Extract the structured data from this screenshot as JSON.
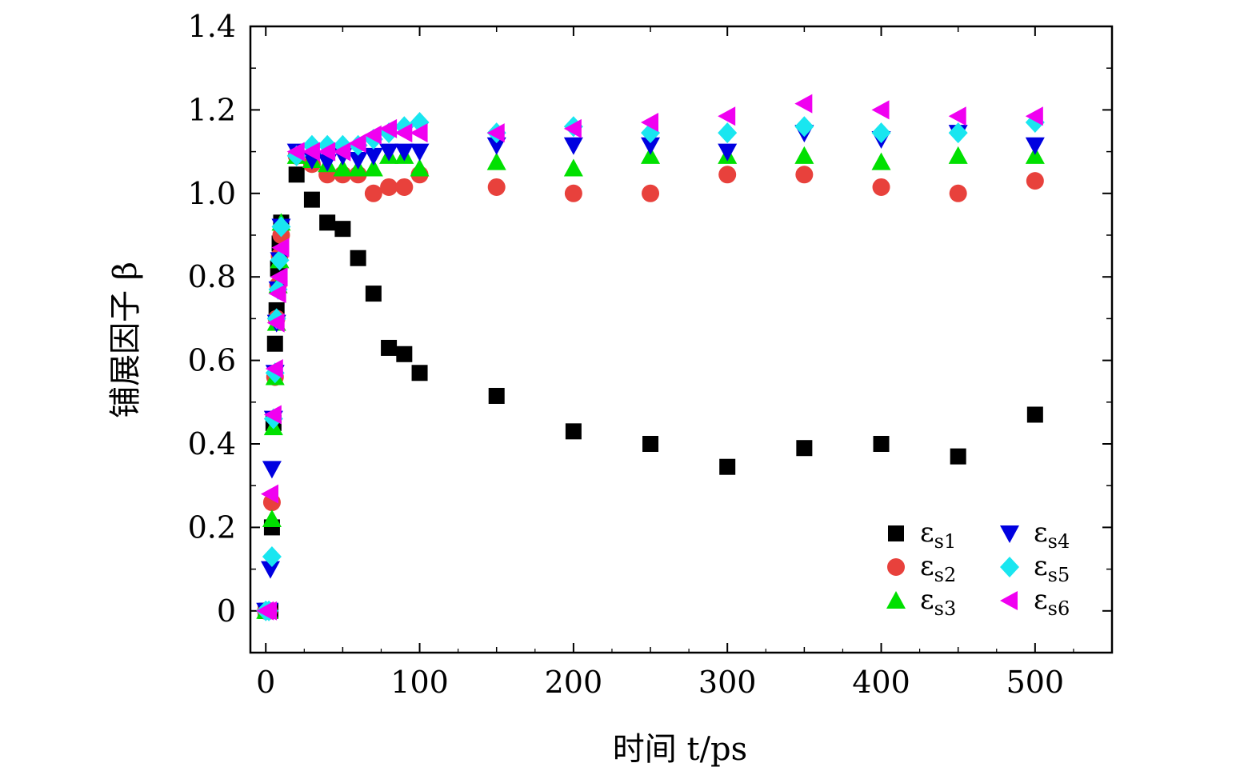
{
  "chart_data": {
    "type": "scatter",
    "xlabel": "时间 t/ps",
    "ylabel": "铺展因子 β",
    "xlim": [
      -10,
      550
    ],
    "ylim": [
      -0.1,
      1.4
    ],
    "xticks": [
      0,
      100,
      200,
      300,
      400,
      500
    ],
    "xtick_labels": [
      "0",
      "100",
      "200",
      "300",
      "400",
      "500"
    ],
    "yticks": [
      0,
      0.2,
      0.4,
      0.6,
      0.8,
      1.0,
      1.2,
      1.4
    ],
    "ytick_labels": [
      "0",
      "0.2",
      "0.4",
      "0.6",
      "0.8",
      "1.0",
      "1.2",
      "1.4"
    ],
    "grid": false,
    "legend_position": "bottom-right",
    "series": [
      {
        "name": "εs1",
        "marker": "square",
        "color": "#000000",
        "points": [
          [
            0,
            0
          ],
          [
            1,
            0
          ],
          [
            2,
            0
          ],
          [
            3,
            0
          ],
          [
            4,
            0.2
          ],
          [
            5,
            0.45
          ],
          [
            6,
            0.64
          ],
          [
            7,
            0.72
          ],
          [
            8,
            0.82
          ],
          [
            9,
            0.88
          ],
          [
            10,
            0.93
          ],
          [
            20,
            1.045
          ],
          [
            30,
            0.985
          ],
          [
            40,
            0.93
          ],
          [
            50,
            0.915
          ],
          [
            60,
            0.845
          ],
          [
            70,
            0.76
          ],
          [
            80,
            0.63
          ],
          [
            90,
            0.615
          ],
          [
            100,
            0.57
          ],
          [
            150,
            0.515
          ],
          [
            200,
            0.43
          ],
          [
            250,
            0.4
          ],
          [
            300,
            0.345
          ],
          [
            350,
            0.39
          ],
          [
            400,
            0.4
          ],
          [
            450,
            0.37
          ],
          [
            500,
            0.47
          ]
        ]
      },
      {
        "name": "εs2",
        "marker": "circle",
        "color": "#e8413c",
        "points": [
          [
            0,
            0
          ],
          [
            2,
            0
          ],
          [
            4,
            0.26
          ],
          [
            6,
            0.56
          ],
          [
            7,
            0.7
          ],
          [
            8,
            0.78
          ],
          [
            9,
            0.85
          ],
          [
            10,
            0.9
          ],
          [
            20,
            1.09
          ],
          [
            30,
            1.07
          ],
          [
            40,
            1.045
          ],
          [
            50,
            1.045
          ],
          [
            60,
            1.045
          ],
          [
            70,
            1.0
          ],
          [
            80,
            1.015
          ],
          [
            90,
            1.015
          ],
          [
            100,
            1.045
          ],
          [
            150,
            1.015
          ],
          [
            200,
            1.0
          ],
          [
            250,
            1.0
          ],
          [
            300,
            1.045
          ],
          [
            350,
            1.045
          ],
          [
            400,
            1.015
          ],
          [
            450,
            1.0
          ],
          [
            500,
            1.03
          ]
        ]
      },
      {
        "name": "εs3",
        "marker": "triangle-up",
        "color": "#00e000",
        "points": [
          [
            0,
            0
          ],
          [
            2,
            0
          ],
          [
            4,
            0.22
          ],
          [
            5,
            0.44
          ],
          [
            6,
            0.56
          ],
          [
            7,
            0.69
          ],
          [
            8,
            0.78
          ],
          [
            9,
            0.84
          ],
          [
            10,
            0.93
          ],
          [
            20,
            1.09
          ],
          [
            30,
            1.08
          ],
          [
            40,
            1.07
          ],
          [
            50,
            1.06
          ],
          [
            60,
            1.06
          ],
          [
            70,
            1.06
          ],
          [
            80,
            1.09
          ],
          [
            90,
            1.09
          ],
          [
            100,
            1.06
          ],
          [
            150,
            1.075
          ],
          [
            200,
            1.06
          ],
          [
            250,
            1.09
          ],
          [
            300,
            1.09
          ],
          [
            350,
            1.09
          ],
          [
            400,
            1.075
          ],
          [
            450,
            1.09
          ],
          [
            500,
            1.09
          ]
        ]
      },
      {
        "name": "εs4",
        "marker": "triangle-down",
        "color": "#0000e0",
        "points": [
          [
            0,
            0
          ],
          [
            2,
            0
          ],
          [
            3,
            0.1
          ],
          [
            4,
            0.34
          ],
          [
            5,
            0.46
          ],
          [
            6,
            0.57
          ],
          [
            7,
            0.69
          ],
          [
            8,
            0.77
          ],
          [
            9,
            0.84
          ],
          [
            10,
            0.92
          ],
          [
            20,
            1.1
          ],
          [
            30,
            1.08
          ],
          [
            40,
            1.075
          ],
          [
            50,
            1.09
          ],
          [
            60,
            1.08
          ],
          [
            70,
            1.09
          ],
          [
            80,
            1.1
          ],
          [
            90,
            1.1
          ],
          [
            100,
            1.1
          ],
          [
            150,
            1.115
          ],
          [
            200,
            1.115
          ],
          [
            250,
            1.115
          ],
          [
            300,
            1.1
          ],
          [
            350,
            1.145
          ],
          [
            400,
            1.13
          ],
          [
            450,
            1.145
          ],
          [
            500,
            1.115
          ]
        ]
      },
      {
        "name": "εs5",
        "marker": "diamond",
        "color": "#19e6f0",
        "points": [
          [
            0,
            0
          ],
          [
            2,
            0
          ],
          [
            4,
            0.13
          ],
          [
            5,
            0.46
          ],
          [
            6,
            0.57
          ],
          [
            7,
            0.7
          ],
          [
            8,
            0.77
          ],
          [
            9,
            0.84
          ],
          [
            10,
            0.92
          ],
          [
            20,
            1.09
          ],
          [
            30,
            1.115
          ],
          [
            40,
            1.115
          ],
          [
            50,
            1.115
          ],
          [
            60,
            1.115
          ],
          [
            70,
            1.13
          ],
          [
            80,
            1.145
          ],
          [
            90,
            1.16
          ],
          [
            100,
            1.17
          ],
          [
            150,
            1.145
          ],
          [
            200,
            1.16
          ],
          [
            250,
            1.145
          ],
          [
            300,
            1.145
          ],
          [
            350,
            1.16
          ],
          [
            400,
            1.145
          ],
          [
            450,
            1.145
          ],
          [
            500,
            1.17
          ]
        ]
      },
      {
        "name": "εs6",
        "marker": "triangle-left",
        "color": "#f000f0",
        "points": [
          [
            0,
            0
          ],
          [
            2,
            0
          ],
          [
            3,
            0.28
          ],
          [
            5,
            0.47
          ],
          [
            6,
            0.58
          ],
          [
            7,
            0.69
          ],
          [
            8,
            0.76
          ],
          [
            9,
            0.8
          ],
          [
            10,
            0.87
          ],
          [
            20,
            1.1
          ],
          [
            30,
            1.1
          ],
          [
            40,
            1.1
          ],
          [
            50,
            1.1
          ],
          [
            60,
            1.12
          ],
          [
            70,
            1.14
          ],
          [
            80,
            1.155
          ],
          [
            90,
            1.145
          ],
          [
            100,
            1.145
          ],
          [
            150,
            1.145
          ],
          [
            200,
            1.155
          ],
          [
            250,
            1.17
          ],
          [
            300,
            1.185
          ],
          [
            350,
            1.215
          ],
          [
            400,
            1.2
          ],
          [
            450,
            1.185
          ],
          [
            500,
            1.185
          ]
        ]
      }
    ]
  }
}
